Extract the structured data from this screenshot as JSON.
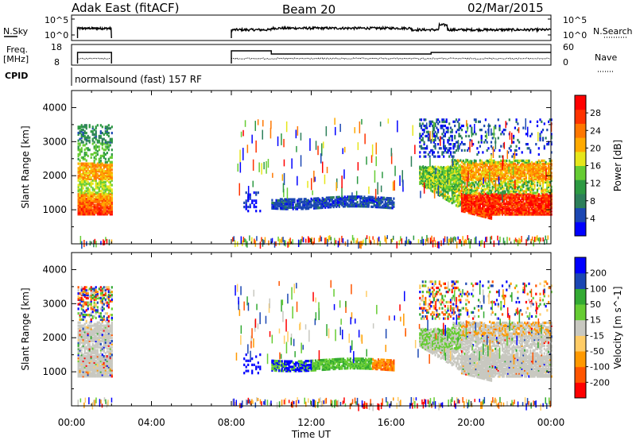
{
  "header": {
    "title": "Adak East (fitACF)",
    "beam": "Beam 20",
    "date": "02/Mar/2015"
  },
  "panels": {
    "nsky": {
      "left_label": "N.Sky",
      "left_ticks": [
        "10^5",
        "10^0"
      ],
      "right_label": "N.Search",
      "right_ticks": [
        "10^5",
        "10^0"
      ]
    },
    "freq": {
      "left_label_line1": "Freq.",
      "left_label_line2": "[MHz]",
      "left_ticks": [
        "18",
        "8"
      ],
      "right_label": "Nave",
      "right_ticks": [
        "60",
        "0"
      ]
    },
    "cpid": {
      "label": "CPID",
      "text": "normalsound (fast) 157 RF"
    }
  },
  "chart_data": [
    {
      "type": "heatmap",
      "title": "",
      "xlabel": "Time UT",
      "ylabel": "Slant Range [km]",
      "xlim": [
        "00:00",
        "24:00"
      ],
      "ylim": [
        0,
        4500
      ],
      "x_ticks": [
        "00:00",
        "04:00",
        "08:00",
        "12:00",
        "16:00",
        "20:00",
        "00:00"
      ],
      "y_ticks": [
        1000,
        2000,
        3000,
        4000
      ],
      "colorbar": {
        "label": "Power [dB]",
        "range": [
          0,
          30
        ],
        "ticks": [
          "28",
          "24",
          "20",
          "16",
          "12",
          "8",
          "4"
        ],
        "colors": [
          "#0000ff",
          "#1b47b3",
          "#2d7f5a",
          "#2d9a42",
          "#66cc33",
          "#e6e61a",
          "#ffaa00",
          "#ff7700",
          "#ff3300",
          "#ff0000"
        ]
      },
      "regions": [
        {
          "time": [
            "00:30",
            "02:00"
          ],
          "range": [
            900,
            1500
          ],
          "value": "high"
        },
        {
          "time": [
            "00:30",
            "02:00"
          ],
          "range": [
            1900,
            2400
          ],
          "value": "medium"
        },
        {
          "time": [
            "08:30",
            "09:30"
          ],
          "range": [
            1000,
            1600
          ],
          "value": "low"
        },
        {
          "time": [
            "10:00",
            "16:00"
          ],
          "range": [
            1100,
            1400
          ],
          "value": "low"
        },
        {
          "time": [
            "17:30",
            "24:00"
          ],
          "range": [
            800,
            2500
          ],
          "value": "high"
        }
      ]
    },
    {
      "type": "heatmap",
      "title": "",
      "xlabel": "Time UT",
      "ylabel": "Slant Range [km]",
      "xlim": [
        "00:00",
        "24:00"
      ],
      "ylim": [
        0,
        4500
      ],
      "x_ticks": [
        "00:00",
        "04:00",
        "08:00",
        "12:00",
        "16:00",
        "20:00",
        "00:00"
      ],
      "y_ticks": [
        1000,
        2000,
        3000,
        4000
      ],
      "colorbar": {
        "label": "Velocity [m s^-1]",
        "range": [
          -250,
          250
        ],
        "ticks": [
          "200",
          "100",
          "50",
          "15",
          "-15",
          "-50",
          "-100",
          "-200"
        ],
        "colors": [
          "#ff0000",
          "#ff5500",
          "#ff9900",
          "#ffcc66",
          "#c8c8c0",
          "#66cc33",
          "#33aa33",
          "#1b47b3",
          "#0000ff"
        ]
      },
      "regions": [
        {
          "time": [
            "00:30",
            "02:00"
          ],
          "range": [
            900,
            2500
          ],
          "value": "ground scatter"
        },
        {
          "time": [
            "10:00",
            "16:00"
          ],
          "range": [
            1100,
            1400
          ],
          "value": "mixed"
        },
        {
          "time": [
            "17:30",
            "24:00"
          ],
          "range": [
            800,
            2500
          ],
          "value": "ground scatter"
        }
      ]
    }
  ]
}
